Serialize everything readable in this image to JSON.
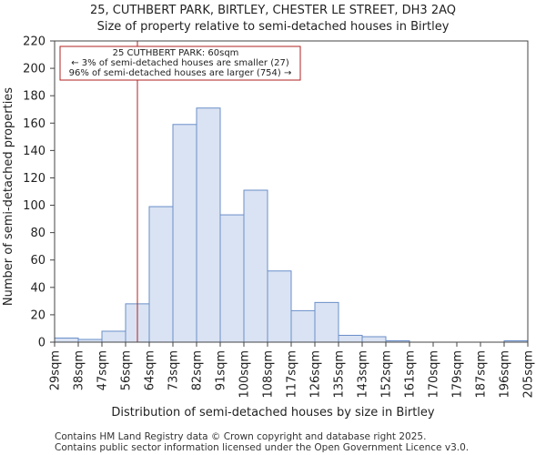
{
  "chart_data": {
    "type": "bar",
    "title": "25, CUTHBERT PARK, BIRTLEY, CHESTER LE STREET, DH3 2AQ",
    "subtitle": "Size of property relative to semi-detached houses in Birtley",
    "xlabel": "Distribution of semi-detached houses by size in Birtley",
    "ylabel": "Number of semi-detached properties",
    "ylim": [
      0,
      220
    ],
    "yticks": [
      0,
      20,
      40,
      60,
      80,
      100,
      120,
      140,
      160,
      180,
      200,
      220
    ],
    "bin_edges": [
      29,
      38,
      47,
      56,
      64,
      73,
      82,
      91,
      100,
      108,
      117,
      126,
      135,
      143,
      152,
      161,
      170,
      179,
      187,
      196,
      205
    ],
    "tick_labels": [
      "29sqm",
      "38sqm",
      "47sqm",
      "56sqm",
      "64sqm",
      "73sqm",
      "82sqm",
      "91sqm",
      "100sqm",
      "108sqm",
      "117sqm",
      "126sqm",
      "135sqm",
      "143sqm",
      "152sqm",
      "161sqm",
      "170sqm",
      "179sqm",
      "187sqm",
      "196sqm",
      "205sqm"
    ],
    "values": [
      3,
      2,
      8,
      28,
      99,
      159,
      171,
      93,
      111,
      52,
      23,
      29,
      5,
      4,
      1,
      0,
      0,
      0,
      0,
      1
    ],
    "bar_color": "#dae3f3",
    "bar_edge_color": "#6a8fc9",
    "marker": {
      "value": 60,
      "color": "#b22222",
      "annotation": [
        "25 CUTHBERT PARK: 60sqm",
        "← 3% of semi-detached houses are smaller (27)",
        "96% of semi-detached houses are larger (754) →"
      ]
    },
    "grid": false
  },
  "footer": {
    "line1": "Contains HM Land Registry data © Crown copyright and database right 2025.",
    "line2": "Contains public sector information licensed under the Open Government Licence v3.0."
  }
}
